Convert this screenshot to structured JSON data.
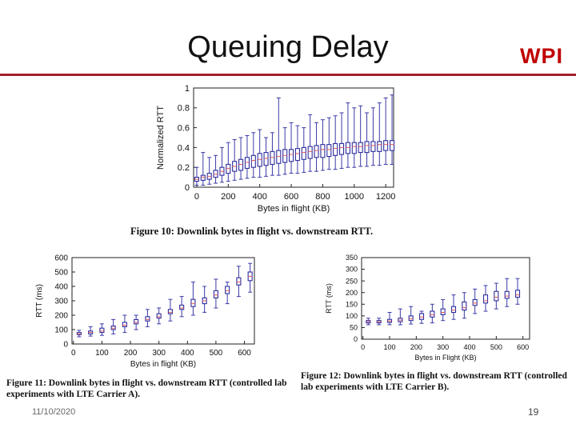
{
  "slide": {
    "title": "Queuing Delay",
    "logo": "WPI",
    "date": "11/10/2020",
    "page_number": "19",
    "accent_color": "#a31f2b",
    "logo_color": "#c00000"
  },
  "captions": {
    "fig10": "Figure 10: Downlink bytes in flight vs. downstream RTT.",
    "fig11": "Figure 11: Downlink bytes in flight vs. downstream RTT (controlled lab experiments with LTE Carrier A).",
    "fig12": "Figure 12: Downlink bytes in flight vs. downstream RTT (controlled lab experiments with LTE Carrier B)."
  },
  "chart_data": [
    {
      "id": "fig10",
      "type": "boxplot",
      "xlabel": "Bytes in flight (KB)",
      "ylabel": "Normalized RTT",
      "xlim": [
        -20,
        1250
      ],
      "ylim": [
        0,
        1
      ],
      "xticks": [
        0,
        200,
        400,
        600,
        800,
        1000,
        1200
      ],
      "yticks": [
        0,
        0.2,
        0.4,
        0.6,
        0.8,
        1
      ],
      "ytick_labels": [
        "0",
        "0.2",
        "0.4",
        "0.6",
        "0.8",
        "1"
      ],
      "x": [
        0,
        40,
        80,
        120,
        160,
        200,
        240,
        280,
        320,
        360,
        400,
        440,
        480,
        520,
        560,
        600,
        640,
        680,
        720,
        760,
        800,
        840,
        880,
        920,
        960,
        1000,
        1040,
        1080,
        1120,
        1160,
        1200,
        1240
      ],
      "q1": [
        0.06,
        0.07,
        0.08,
        0.1,
        0.12,
        0.14,
        0.16,
        0.17,
        0.19,
        0.2,
        0.21,
        0.22,
        0.23,
        0.24,
        0.25,
        0.26,
        0.27,
        0.28,
        0.29,
        0.3,
        0.3,
        0.31,
        0.32,
        0.33,
        0.34,
        0.34,
        0.35,
        0.35,
        0.36,
        0.36,
        0.37,
        0.37
      ],
      "median": [
        0.08,
        0.1,
        0.11,
        0.13,
        0.16,
        0.19,
        0.21,
        0.23,
        0.25,
        0.27,
        0.28,
        0.29,
        0.3,
        0.31,
        0.32,
        0.33,
        0.34,
        0.35,
        0.36,
        0.37,
        0.38,
        0.38,
        0.39,
        0.4,
        0.4,
        0.41,
        0.41,
        0.42,
        0.42,
        0.43,
        0.43,
        0.43
      ],
      "q3": [
        0.1,
        0.12,
        0.14,
        0.17,
        0.2,
        0.23,
        0.26,
        0.28,
        0.3,
        0.32,
        0.34,
        0.35,
        0.36,
        0.37,
        0.38,
        0.38,
        0.39,
        0.4,
        0.41,
        0.42,
        0.43,
        0.43,
        0.44,
        0.44,
        0.45,
        0.45,
        0.45,
        0.46,
        0.46,
        0.46,
        0.47,
        0.47
      ],
      "whisker_low": [
        0.02,
        0.02,
        0.03,
        0.04,
        0.05,
        0.06,
        0.07,
        0.08,
        0.09,
        0.1,
        0.1,
        0.11,
        0.12,
        0.12,
        0.13,
        0.14,
        0.14,
        0.15,
        0.16,
        0.16,
        0.17,
        0.18,
        0.18,
        0.19,
        0.2,
        0.2,
        0.21,
        0.21,
        0.22,
        0.22,
        0.23,
        0.23
      ],
      "whisker_high": [
        0.2,
        0.35,
        0.3,
        0.32,
        0.4,
        0.45,
        0.48,
        0.5,
        0.52,
        0.55,
        0.58,
        0.5,
        0.55,
        0.9,
        0.6,
        0.65,
        0.62,
        0.6,
        0.73,
        0.65,
        0.68,
        0.7,
        0.72,
        0.75,
        0.85,
        0.8,
        0.82,
        0.75,
        0.8,
        0.85,
        0.9,
        0.93
      ]
    },
    {
      "id": "fig11",
      "type": "boxplot",
      "xlabel": "Bytes in flight (KB)",
      "ylabel": "RTT (ms)",
      "xlim": [
        -5,
        635
      ],
      "ylim": [
        0,
        600
      ],
      "xticks": [
        0,
        100,
        200,
        300,
        400,
        500,
        600
      ],
      "yticks": [
        0,
        100,
        200,
        300,
        400,
        500,
        600
      ],
      "x": [
        20,
        60,
        100,
        140,
        180,
        220,
        260,
        300,
        340,
        380,
        420,
        460,
        500,
        540,
        580,
        620
      ],
      "q1": [
        65,
        70,
        80,
        100,
        120,
        140,
        160,
        180,
        210,
        240,
        260,
        280,
        320,
        350,
        410,
        440
      ],
      "median": [
        70,
        80,
        90,
        110,
        130,
        150,
        170,
        190,
        220,
        250,
        280,
        300,
        340,
        370,
        430,
        470
      ],
      "q3": [
        80,
        90,
        110,
        125,
        150,
        170,
        190,
        210,
        240,
        270,
        310,
        320,
        370,
        400,
        460,
        500
      ],
      "whisker_low": [
        50,
        55,
        60,
        70,
        80,
        100,
        120,
        140,
        160,
        190,
        200,
        220,
        250,
        280,
        330,
        360
      ],
      "whisker_high": [
        95,
        120,
        140,
        170,
        200,
        200,
        240,
        250,
        310,
        330,
        430,
        400,
        450,
        430,
        540,
        560
      ]
    },
    {
      "id": "fig12",
      "type": "boxplot",
      "xlabel": "Bytes in Flight (KB)",
      "ylabel": "RTT (ms)",
      "xlim": [
        -5,
        625
      ],
      "ylim": [
        0,
        350
      ],
      "xticks": [
        0,
        100,
        200,
        300,
        400,
        500,
        600
      ],
      "yticks": [
        0,
        50,
        100,
        150,
        200,
        250,
        300,
        350
      ],
      "x": [
        20,
        60,
        100,
        140,
        180,
        220,
        260,
        300,
        340,
        380,
        420,
        460,
        500,
        540,
        580
      ],
      "q1": [
        70,
        70,
        72,
        75,
        80,
        85,
        95,
        105,
        115,
        125,
        145,
        155,
        165,
        175,
        180
      ],
      "median": [
        75,
        75,
        78,
        82,
        88,
        95,
        105,
        115,
        125,
        135,
        155,
        165,
        180,
        185,
        190
      ],
      "q3": [
        80,
        80,
        85,
        90,
        100,
        110,
        120,
        130,
        140,
        160,
        170,
        190,
        205,
        205,
        210
      ],
      "whisker_low": [
        62,
        62,
        62,
        62,
        65,
        68,
        70,
        80,
        85,
        90,
        110,
        120,
        130,
        140,
        150
      ],
      "whisker_high": [
        90,
        90,
        115,
        130,
        140,
        120,
        150,
        170,
        190,
        200,
        215,
        230,
        240,
        260,
        260
      ]
    }
  ]
}
